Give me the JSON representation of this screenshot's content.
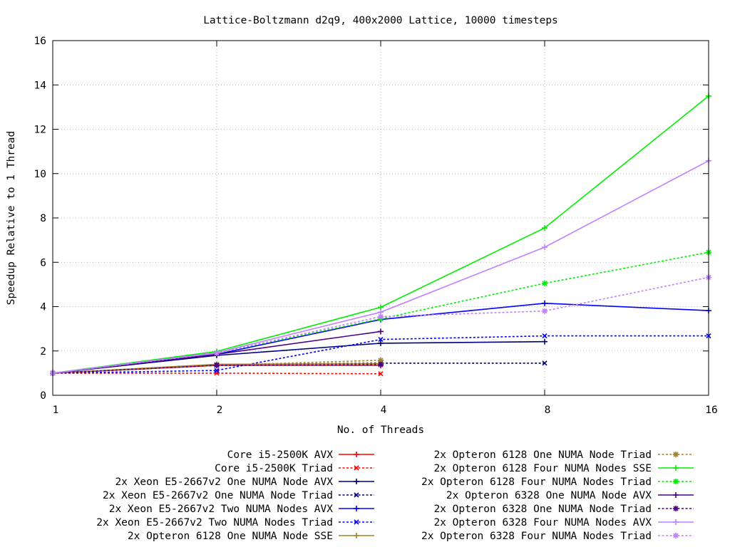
{
  "chart_data": {
    "type": "line",
    "title": "Lattice-Boltzmann d2q9, 400x2000 Lattice, 10000 timesteps",
    "xlabel": "No. of Threads",
    "ylabel": "Speedup Relative to 1 Thread",
    "x_scale": "log2",
    "x_ticks": [
      1,
      2,
      4,
      8,
      16
    ],
    "xlim": [
      1,
      16
    ],
    "y_ticks": [
      0,
      2,
      4,
      6,
      8,
      10,
      12,
      14,
      16
    ],
    "ylim": [
      0,
      16
    ],
    "grid": true,
    "legend_position": "bottom",
    "series": [
      {
        "name": "Core i5-2500K AVX",
        "color": "#ff0000",
        "dash": "solid",
        "marker": "plus",
        "x": [
          1,
          2,
          4
        ],
        "y": [
          1.0,
          1.35,
          1.35
        ]
      },
      {
        "name": "Core i5-2500K Triad",
        "color": "#ff0000",
        "dash": "dotted",
        "marker": "cross",
        "x": [
          1,
          2,
          4
        ],
        "y": [
          1.0,
          1.0,
          0.97
        ]
      },
      {
        "name": "2x Xeon E5-2667v2 One NUMA Node  AVX",
        "color": "#00007f",
        "dash": "solid",
        "marker": "plus",
        "x": [
          1,
          2,
          4,
          8
        ],
        "y": [
          1.0,
          1.8,
          2.35,
          2.42
        ]
      },
      {
        "name": "2x Xeon E5-2667v2 One NUMA Node  Triad",
        "color": "#00007f",
        "dash": "dotted",
        "marker": "cross",
        "x": [
          1,
          2,
          4,
          8
        ],
        "y": [
          1.0,
          1.38,
          1.45,
          1.45
        ]
      },
      {
        "name": "2x Xeon E5-2667v2 Two NUMA Nodes AVX",
        "color": "#0000ff",
        "dash": "solid",
        "marker": "plus",
        "x": [
          1,
          2,
          4,
          8,
          16
        ],
        "y": [
          1.0,
          1.85,
          3.42,
          4.15,
          3.82
        ]
      },
      {
        "name": "2x Xeon E5-2667v2 Two NUMA Nodes Triad",
        "color": "#0000ff",
        "dash": "dotted",
        "marker": "cross",
        "x": [
          1,
          2,
          4,
          8,
          16
        ],
        "y": [
          1.0,
          1.12,
          2.52,
          2.68,
          2.68
        ]
      },
      {
        "name": "2x Opteron 6128 One  NUMA Node  SSE",
        "color": "#a0822d",
        "dash": "solid",
        "marker": "plus",
        "x": [
          1,
          2,
          4
        ],
        "y": [
          1.0,
          1.4,
          1.42
        ]
      },
      {
        "name": "2x Opteron 6128 One  NUMA Node  Triad",
        "color": "#a0822d",
        "dash": "dotted",
        "marker": "asterisk",
        "x": [
          1,
          2,
          4
        ],
        "y": [
          1.0,
          1.35,
          1.58
        ]
      },
      {
        "name": "2x Opteron 6128 Four NUMA Nodes SSE",
        "color": "#00ee00",
        "dash": "solid",
        "marker": "plus",
        "x": [
          1,
          2,
          4,
          8,
          16
        ],
        "y": [
          1.0,
          1.98,
          3.97,
          7.55,
          13.5
        ]
      },
      {
        "name": "2x Opteron 6128 Four NUMA Nodes Triad",
        "color": "#00ee00",
        "dash": "dotted",
        "marker": "asterisk",
        "x": [
          1,
          2,
          4,
          8,
          16
        ],
        "y": [
          1.0,
          1.9,
          3.45,
          5.05,
          6.45
        ]
      },
      {
        "name": "2x Opteron 6328 One  NUMA Node  AVX",
        "color": "#4b0082",
        "dash": "solid",
        "marker": "plus",
        "x": [
          1,
          2,
          4
        ],
        "y": [
          1.0,
          1.85,
          2.88
        ]
      },
      {
        "name": "2x Opteron 6328 One  NUMA Node  Triad",
        "color": "#4b0082",
        "dash": "dotted",
        "marker": "asterisk",
        "x": [
          1,
          2,
          4
        ],
        "y": [
          1.0,
          1.35,
          1.38
        ]
      },
      {
        "name": "2x Opteron 6328 Four NUMA Nodes AVX",
        "color": "#c080ff",
        "dash": "solid",
        "marker": "plus",
        "x": [
          1,
          2,
          4,
          8,
          16
        ],
        "y": [
          1.0,
          1.92,
          3.75,
          6.68,
          10.58
        ]
      },
      {
        "name": "2x Opteron 6328 Four NUMA Nodes Triad",
        "color": "#c080ff",
        "dash": "dotted",
        "marker": "asterisk",
        "x": [
          1,
          2,
          4,
          8,
          16
        ],
        "y": [
          1.0,
          1.9,
          3.55,
          3.8,
          5.32
        ]
      }
    ]
  }
}
